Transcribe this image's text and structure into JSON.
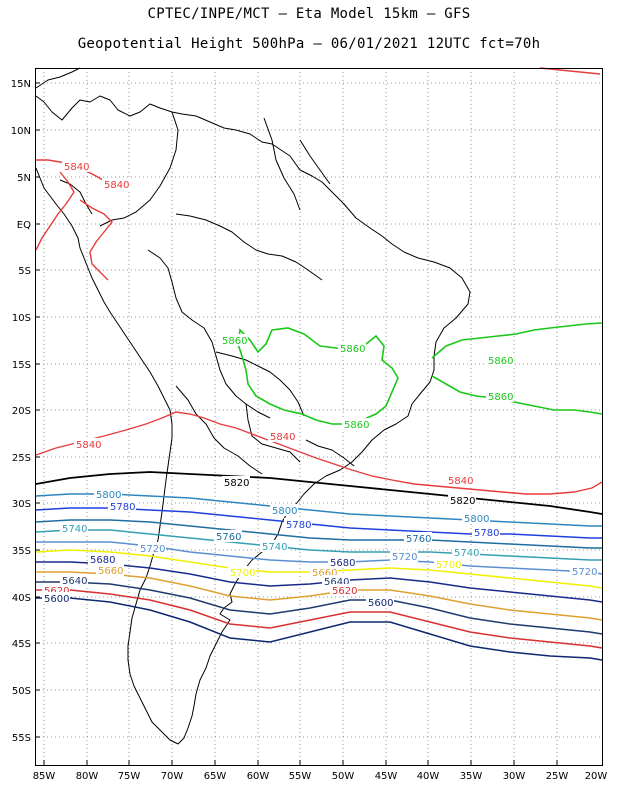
{
  "title_line1": "CPTEC/INPE/MCT —  Eta Model 15km — GFS",
  "title_line2": "Geopotential Height 500hPa — 06/01/2021 12UTC fct=70h",
  "lat_labels": [
    "15N",
    "10N",
    "5N",
    "EQ",
    "5S",
    "10S",
    "15S",
    "20S",
    "25S",
    "30S",
    "35S",
    "40S",
    "45S",
    "50S",
    "55S"
  ],
  "lon_labels": [
    "85W",
    "80W",
    "75W",
    "70W",
    "65W",
    "60W",
    "55W",
    "50W",
    "45W",
    "40W",
    "35W",
    "30W",
    "25W",
    "20W"
  ],
  "colors": {
    "c5860": "#19c819",
    "c5840": "#e83c3c",
    "c5820": "#000000",
    "c5800": "#2e86c1",
    "c5780": "#1f3fe0",
    "c5760": "#1e6fa0",
    "c5740": "#35a0b0",
    "c5720": "#5a8fd0",
    "c5700": "#f0f000",
    "c5680": "#1a2a8c",
    "c5660": "#e0a030",
    "c5640": "#1f3a70",
    "c5620": "#d83030",
    "c5600": "#0d2870"
  },
  "contour_labels": {
    "l5860a": "5860",
    "l5860b": "5860",
    "l5860c": "5860",
    "l5860d": "5860",
    "l5860e": "5860",
    "l5840a": "5840",
    "l5840b": "5840",
    "l5840c": "5840",
    "l5840d": "5840",
    "l5840e": "5840",
    "l5820a": "5820",
    "l5820b": "5820",
    "l5800a": "5800",
    "l5800b": "5800",
    "l5800c": "5800",
    "l5780a": "5780",
    "l5780b": "5780",
    "l5780c": "5780",
    "l5760a": "5760",
    "l5760b": "5760",
    "l5740a": "5740",
    "l5740b": "5740",
    "l5740c": "5740",
    "l5720a": "5720",
    "l5720b": "5720",
    "l5720c": "5720",
    "l5700a": "5700",
    "l5700b": "5700",
    "l5680a": "5680",
    "l5680b": "5680",
    "l5660a": "5660",
    "l5660b": "5660",
    "l5640a": "5640",
    "l5640b": "5640",
    "l5620a": "5620",
    "l5620b": "5620",
    "l5600a": "5600",
    "l5600b": "5600"
  }
}
